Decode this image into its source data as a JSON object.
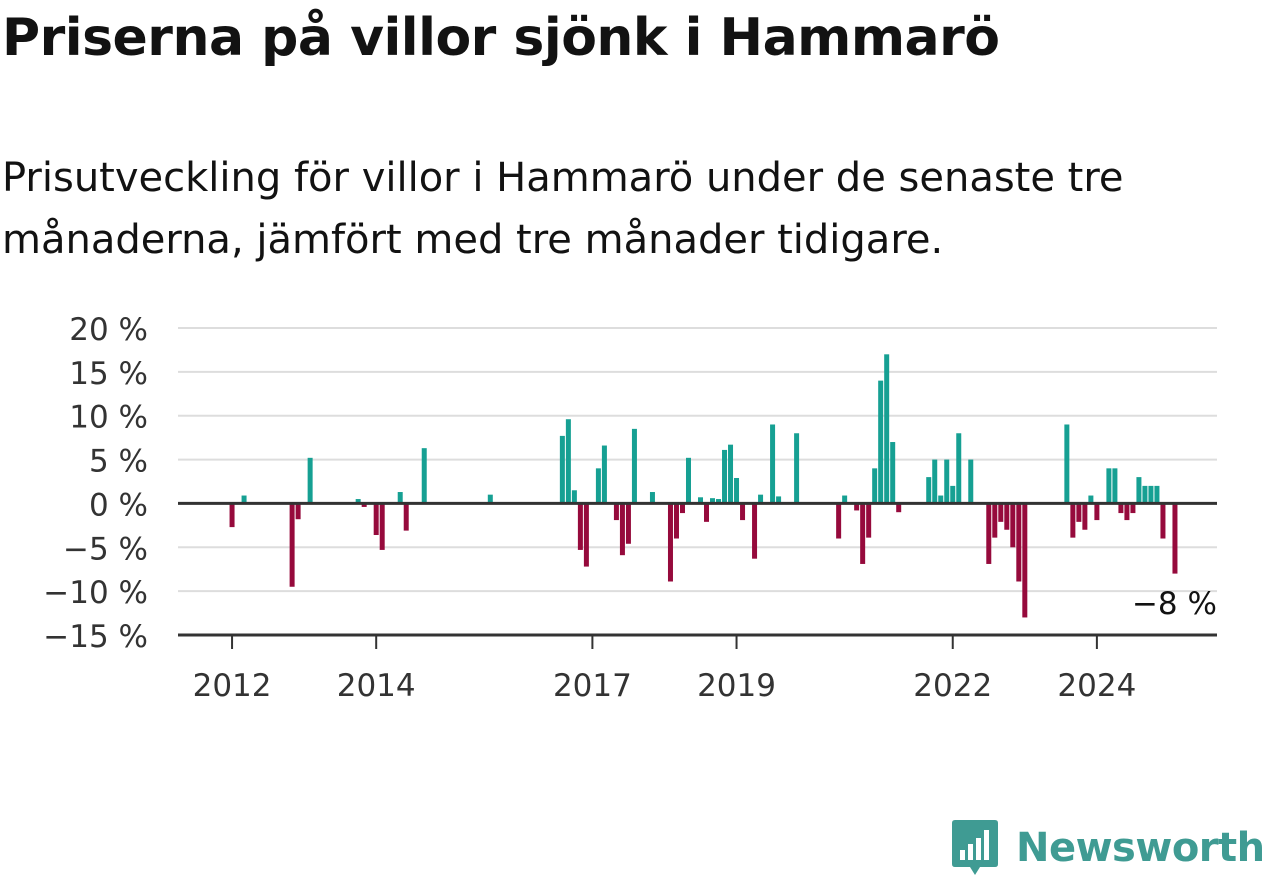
{
  "title": "Priserna på villor sjönk i Hammarö",
  "subtitle": "Prisutveckling för villor i Hammarö under de senaste tre månaderna, jämfört med tre månader tidigare.",
  "brand": {
    "name": "Newsworthy",
    "logo_icon": "newsworthy-bar-chart-icon",
    "color": "#3f9b93"
  },
  "colors": {
    "positive": "#16a093",
    "negative": "#960a3c",
    "grid": "#dddddd",
    "axis": "#333333"
  },
  "chart_data": {
    "type": "bar",
    "title": "Priserna på villor sjönk i Hammarö",
    "subtitle": "Prisutveckling för villor i Hammarö under de senaste tre månaderna, jämfört med tre månader tidigare.",
    "y_unit": "%",
    "ylim": [
      -15,
      20
    ],
    "y_ticks": [
      20,
      15,
      10,
      5,
      0,
      -5,
      -10,
      -15
    ],
    "y_tick_labels": [
      "20 %",
      "15 %",
      "10 %",
      "5 %",
      "0 %",
      "−5 %",
      "−10 %",
      "−15 %"
    ],
    "xlim": [
      "2011-04",
      "2025-09"
    ],
    "x_ticks": [
      "2012-01",
      "2014-01",
      "2017-01",
      "2019-01",
      "2022-01",
      "2024-01"
    ],
    "x_tick_labels": [
      "2012",
      "2014",
      "2017",
      "2019",
      "2022",
      "2024"
    ],
    "grid": true,
    "annotation": {
      "date": "2025-02",
      "text": "−8 %"
    },
    "points": [
      [
        "2012-01",
        -2.7
      ],
      [
        "2012-03",
        0.9
      ],
      [
        "2012-11",
        -9.5
      ],
      [
        "2012-12",
        -1.8
      ],
      [
        "2013-02",
        5.2
      ],
      [
        "2013-10",
        0.5
      ],
      [
        "2013-11",
        -0.4
      ],
      [
        "2014-01",
        -3.6
      ],
      [
        "2014-02",
        -5.3
      ],
      [
        "2014-05",
        1.3
      ],
      [
        "2014-06",
        -3.1
      ],
      [
        "2014-09",
        6.3
      ],
      [
        "2015-08",
        1.0
      ],
      [
        "2016-08",
        7.7
      ],
      [
        "2016-09",
        9.6
      ],
      [
        "2016-10",
        1.5
      ],
      [
        "2016-11",
        -5.3
      ],
      [
        "2016-12",
        -7.2
      ],
      [
        "2017-02",
        4.0
      ],
      [
        "2017-03",
        6.6
      ],
      [
        "2017-05",
        -1.9
      ],
      [
        "2017-06",
        -5.9
      ],
      [
        "2017-07",
        -4.6
      ],
      [
        "2017-08",
        8.5
      ],
      [
        "2017-11",
        1.3
      ],
      [
        "2018-02",
        -8.9
      ],
      [
        "2018-03",
        -4.0
      ],
      [
        "2018-04",
        -1.1
      ],
      [
        "2018-05",
        5.2
      ],
      [
        "2018-07",
        0.7
      ],
      [
        "2018-08",
        -2.1
      ],
      [
        "2018-09",
        0.6
      ],
      [
        "2018-10",
        0.5
      ],
      [
        "2018-11",
        6.1
      ],
      [
        "2018-12",
        6.7
      ],
      [
        "2019-01",
        2.9
      ],
      [
        "2019-02",
        -1.9
      ],
      [
        "2019-04",
        -6.3
      ],
      [
        "2019-05",
        1.0
      ],
      [
        "2019-07",
        9.0
      ],
      [
        "2019-08",
        0.8
      ],
      [
        "2019-11",
        8.0
      ],
      [
        "2020-06",
        -4.0
      ],
      [
        "2020-07",
        0.9
      ],
      [
        "2020-09",
        -0.8
      ],
      [
        "2020-10",
        -6.9
      ],
      [
        "2020-11",
        -3.9
      ],
      [
        "2020-12",
        4.0
      ],
      [
        "2021-01",
        14.0
      ],
      [
        "2021-02",
        17.0
      ],
      [
        "2021-03",
        7.0
      ],
      [
        "2021-04",
        -1.0
      ],
      [
        "2021-09",
        3.0
      ],
      [
        "2021-10",
        5.0
      ],
      [
        "2021-11",
        0.9
      ],
      [
        "2021-12",
        5.0
      ],
      [
        "2022-01",
        2.0
      ],
      [
        "2022-02",
        8.0
      ],
      [
        "2022-04",
        5.0
      ],
      [
        "2022-07",
        -6.9
      ],
      [
        "2022-08",
        -3.9
      ],
      [
        "2022-09",
        -2.1
      ],
      [
        "2022-10",
        -3.0
      ],
      [
        "2022-11",
        -5.0
      ],
      [
        "2022-12",
        -8.9
      ],
      [
        "2023-01",
        -13.0
      ],
      [
        "2023-08",
        9.0
      ],
      [
        "2023-09",
        -3.9
      ],
      [
        "2023-10",
        -2.1
      ],
      [
        "2023-11",
        -3.0
      ],
      [
        "2023-12",
        0.9
      ],
      [
        "2024-01",
        -1.9
      ],
      [
        "2024-03",
        4.0
      ],
      [
        "2024-04",
        4.0
      ],
      [
        "2024-05",
        -1.1
      ],
      [
        "2024-06",
        -1.9
      ],
      [
        "2024-07",
        -1.1
      ],
      [
        "2024-08",
        3.0
      ],
      [
        "2024-09",
        2.0
      ],
      [
        "2024-10",
        2.0
      ],
      [
        "2024-11",
        2.0
      ],
      [
        "2024-12",
        -4.0
      ],
      [
        "2025-02",
        -8.0
      ]
    ]
  }
}
